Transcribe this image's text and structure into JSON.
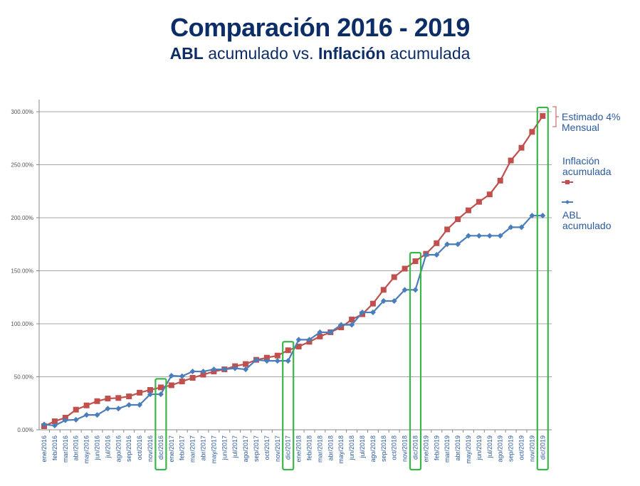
{
  "chart_data": {
    "type": "line",
    "title": "Comparación 2016 - 2019",
    "subtitle": {
      "bold1": "ABL",
      "rest1": " acumulado vs. ",
      "bold2": "Inflación",
      "rest2": " acumulada"
    },
    "xlabel": "",
    "ylabel": "",
    "ylim": [
      0,
      300
    ],
    "yticks": [
      0,
      50,
      100,
      150,
      200,
      250,
      300
    ],
    "ytick_labels": [
      "0.00%",
      "50.00%",
      "100.00%",
      "150.00%",
      "200.00%",
      "250.00%",
      "300.00%"
    ],
    "grid": true,
    "categories": [
      "ene/2016",
      "feb/2016",
      "mar/2016",
      "abr/2016",
      "may/2016",
      "jun/2016",
      "jul/2016",
      "ago/2016",
      "sep/2016",
      "oct/2016",
      "nov/2016",
      "dic/2016",
      "ene/2017",
      "feb/2017",
      "mar/2017",
      "abr/2017",
      "may/2017",
      "jun/2017",
      "jul/2017",
      "ago/2017",
      "sep/2017",
      "oct/2017",
      "nov/2017",
      "dic/2017",
      "ene/2018",
      "feb/2018",
      "mar/2018",
      "abr/2018",
      "may/2018",
      "jun/2018",
      "jul/2018",
      "ago/2018",
      "sep/2018",
      "oct/2018",
      "nov/2018",
      "dic/2018",
      "ene/2019",
      "feb/2019",
      "mar/2019",
      "abr/2019",
      "may/2019",
      "jun/2019",
      "jul/2019",
      "ago/2019",
      "sep/2019",
      "oct/2019",
      "nov/2019",
      "dic/2019"
    ],
    "series": [
      {
        "name": "Inflación acumulada",
        "color": "#c0504d",
        "marker": "square",
        "values": [
          3.4,
          8,
          11.4,
          19,
          23,
          27,
          29.5,
          30,
          31.5,
          35,
          37.6,
          40,
          42,
          45.6,
          49,
          52,
          55,
          57,
          60,
          62,
          66,
          68,
          70,
          75,
          78.5,
          83,
          88,
          92,
          96.6,
          104,
          109,
          119,
          132,
          144,
          152,
          159,
          166,
          176,
          189,
          198.6,
          207,
          215,
          222,
          235,
          254,
          266,
          281,
          296
        ]
      },
      {
        "name": "ABL acumulado",
        "color": "#4a7ebb",
        "marker": "diamond",
        "values": [
          5,
          4,
          9,
          9.5,
          14,
          14,
          20,
          20,
          23.5,
          23.5,
          33.5,
          33.5,
          51,
          50.5,
          55,
          55,
          57,
          57,
          58,
          57,
          66,
          65,
          65,
          65,
          85,
          85,
          92,
          92,
          99,
          99,
          110.7,
          110.7,
          121.5,
          121.5,
          132,
          132,
          165,
          165,
          175,
          175,
          183,
          183,
          183,
          183,
          191,
          191,
          202,
          202
        ]
      }
    ],
    "highlighted_categories": [
      "dic/2016",
      "dic/2017",
      "dic/2018",
      "dic/2019"
    ],
    "highlight_color": "#3cb54a",
    "legend": {
      "placement": "right",
      "estimate_note": "Estimado 4%\nMensual",
      "inflation_label": "Inflación acumulada",
      "abl_label": "ABL acumulado"
    }
  }
}
